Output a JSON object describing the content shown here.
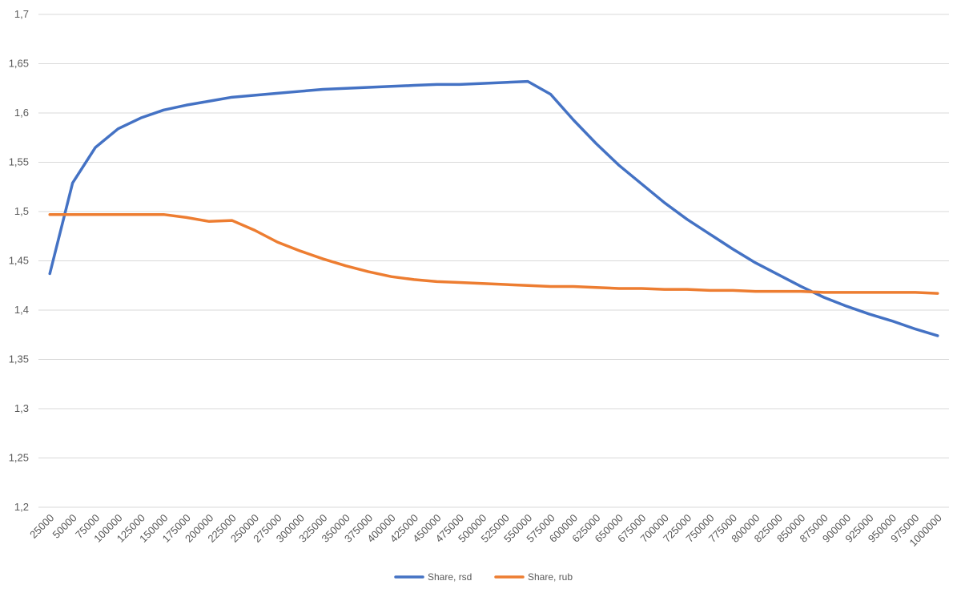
{
  "chart_data": {
    "type": "line",
    "title": "",
    "xlabel": "",
    "ylabel": "",
    "grid": true,
    "legend_position": "bottom",
    "ylim": [
      1.2,
      1.7
    ],
    "y_ticks": [
      "1,2",
      "1,25",
      "1,3",
      "1,35",
      "1,4",
      "1,45",
      "1,5",
      "1,55",
      "1,6",
      "1,65",
      "1,7"
    ],
    "categories": [
      "25000",
      "50000",
      "75000",
      "100000",
      "125000",
      "150000",
      "175000",
      "200000",
      "225000",
      "250000",
      "275000",
      "300000",
      "325000",
      "350000",
      "375000",
      "400000",
      "425000",
      "450000",
      "475000",
      "500000",
      "525000",
      "550000",
      "575000",
      "600000",
      "625000",
      "650000",
      "675000",
      "700000",
      "725000",
      "750000",
      "775000",
      "800000",
      "825000",
      "850000",
      "875000",
      "900000",
      "925000",
      "950000",
      "975000",
      "1000000"
    ],
    "series": [
      {
        "name": "Share, rsd",
        "color": "#4472C4",
        "values": [
          1.437,
          1.529,
          1.565,
          1.584,
          1.595,
          1.603,
          1.608,
          1.612,
          1.616,
          1.618,
          1.62,
          1.622,
          1.624,
          1.625,
          1.626,
          1.627,
          1.628,
          1.629,
          1.629,
          1.63,
          1.631,
          1.632,
          1.619,
          1.593,
          1.569,
          1.547,
          1.528,
          1.509,
          1.492,
          1.477,
          1.462,
          1.448,
          1.436,
          1.424,
          1.413,
          1.404,
          1.396,
          1.389,
          1.381,
          1.374
        ]
      },
      {
        "name": "Share, rub",
        "color": "#ED7D31",
        "values": [
          1.497,
          1.497,
          1.497,
          1.497,
          1.497,
          1.497,
          1.494,
          1.49,
          1.491,
          1.481,
          1.469,
          1.46,
          1.452,
          1.445,
          1.439,
          1.434,
          1.431,
          1.429,
          1.428,
          1.427,
          1.426,
          1.425,
          1.424,
          1.424,
          1.423,
          1.422,
          1.422,
          1.421,
          1.421,
          1.42,
          1.42,
          1.419,
          1.419,
          1.419,
          1.418,
          1.418,
          1.418,
          1.418,
          1.418,
          1.417
        ]
      }
    ]
  }
}
